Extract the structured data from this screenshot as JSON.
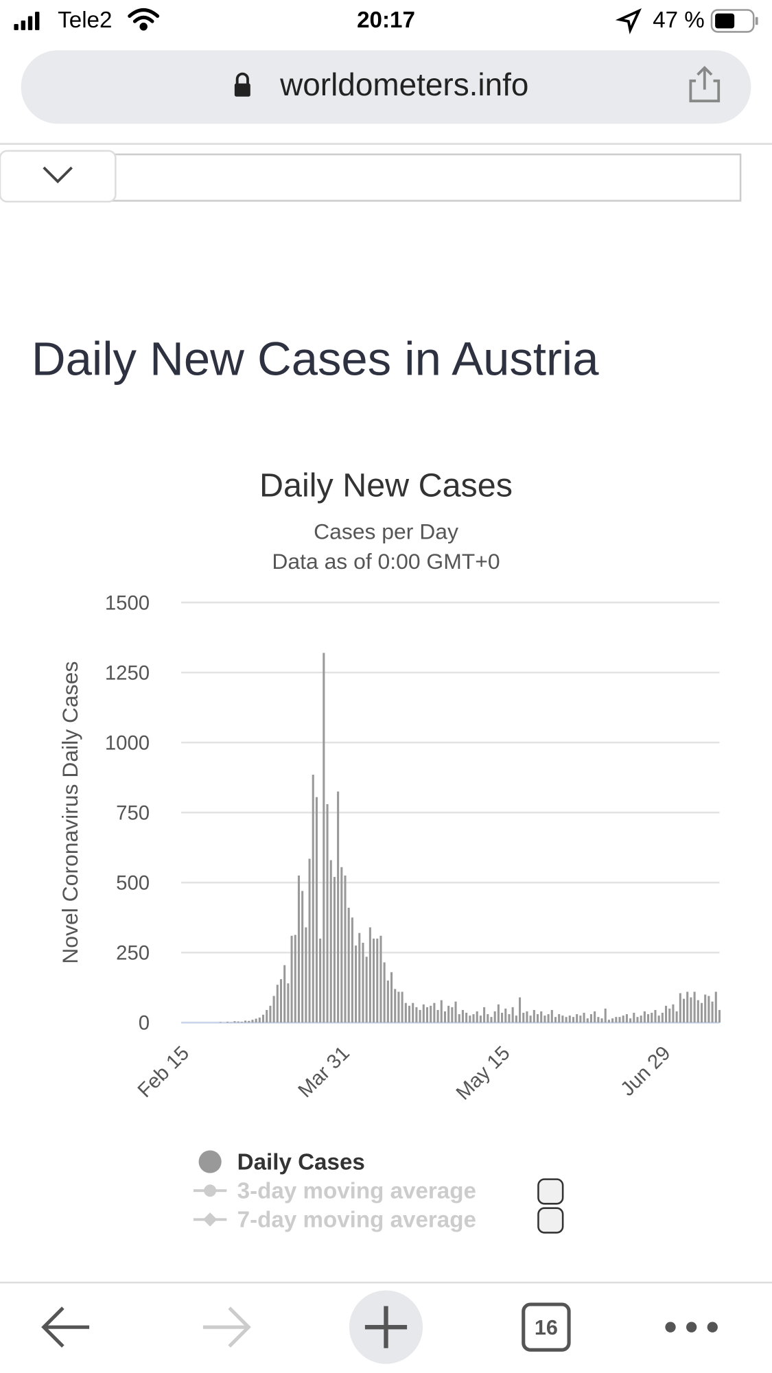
{
  "status_bar": {
    "carrier": "Tele2",
    "time": "20:17",
    "battery": "47 %"
  },
  "browser": {
    "url": "worldometers.info",
    "tabs": "16"
  },
  "heading": "Daily New Cases in Austria",
  "chart_data": {
    "type": "bar",
    "title": "Daily New Cases",
    "subtitle": "Cases per Day",
    "note": "Data as of 0:00 GMT+0",
    "y_label": "Novel Coronavirus Daily Cases",
    "categories": [
      "Feb 15",
      null,
      null,
      null,
      null,
      null,
      null,
      null,
      null,
      null,
      null,
      null,
      null,
      null,
      null,
      null,
      null,
      null,
      null,
      null,
      null,
      null,
      null,
      null,
      null,
      null,
      null,
      null,
      null,
      null,
      null,
      null,
      null,
      null,
      null,
      null,
      null,
      null,
      null,
      null,
      null,
      null,
      null,
      null,
      null,
      "Mar 31",
      null,
      null,
      null,
      null,
      null,
      null,
      null,
      null,
      null,
      null,
      null,
      null,
      null,
      null,
      null,
      null,
      null,
      null,
      null,
      null,
      null,
      null,
      null,
      null,
      null,
      null,
      null,
      null,
      null,
      null,
      null,
      null,
      null,
      null,
      null,
      null,
      null,
      null,
      null,
      null,
      null,
      null,
      null,
      null,
      "May 15",
      null,
      null,
      null,
      null,
      null,
      null,
      null,
      null,
      null,
      null,
      null,
      null,
      null,
      null,
      null,
      null,
      null,
      null,
      null,
      null,
      null,
      null,
      null,
      null,
      null,
      null,
      null,
      null,
      null,
      null,
      null,
      null,
      null,
      null,
      null,
      null,
      null,
      null,
      null,
      null,
      null,
      null,
      null,
      null,
      "Jun 29",
      null,
      null,
      null,
      null,
      null,
      null,
      null,
      null,
      null,
      null,
      null,
      null,
      null,
      null,
      null,
      null
    ],
    "series": [
      {
        "name": "Daily Cases",
        "color": "#999999",
        "values": [
          0,
          0,
          0,
          0,
          0,
          0,
          0,
          0,
          0,
          0,
          0,
          2,
          0,
          3,
          1,
          5,
          4,
          3,
          7,
          6,
          10,
          14,
          18,
          28,
          45,
          60,
          95,
          135,
          155,
          205,
          140,
          310,
          313,
          525,
          470,
          340,
          585,
          885,
          805,
          300,
          1320,
          780,
          580,
          520,
          825,
          555,
          525,
          410,
          375,
          275,
          320,
          285,
          235,
          340,
          300,
          300,
          310,
          215,
          150,
          180,
          120,
          110,
          110,
          70,
          60,
          70,
          55,
          45,
          65,
          55,
          60,
          70,
          45,
          80,
          40,
          60,
          55,
          75,
          30,
          45,
          35,
          25,
          30,
          40,
          25,
          55,
          30,
          20,
          40,
          65,
          35,
          50,
          30,
          55,
          25,
          90,
          35,
          40,
          25,
          45,
          30,
          40,
          25,
          30,
          45,
          20,
          30,
          25,
          20,
          25,
          20,
          30,
          25,
          35,
          15,
          30,
          40,
          20,
          15,
          50,
          10,
          15,
          20,
          20,
          25,
          30,
          15,
          35,
          20,
          25,
          40,
          30,
          35,
          45,
          25,
          35,
          60,
          50,
          65,
          40,
          105,
          85,
          110,
          90,
          110,
          80,
          70,
          100,
          95,
          75,
          110,
          45
        ]
      }
    ],
    "hidden_series": [
      "3-day moving average",
      "7-day moving average"
    ],
    "ylim": [
      0,
      1500
    ],
    "yticks": [
      0,
      250,
      500,
      750,
      1000,
      1250,
      1500
    ],
    "grid": true
  }
}
